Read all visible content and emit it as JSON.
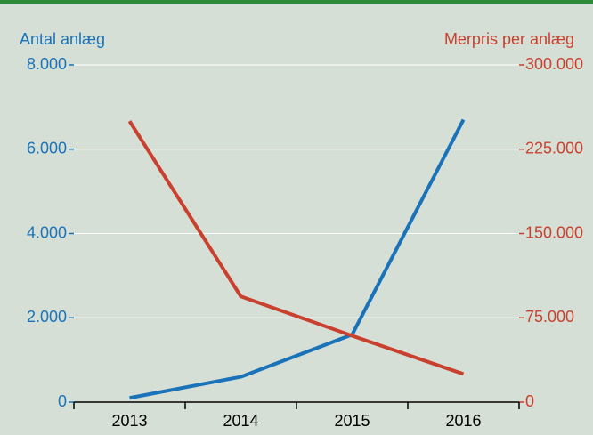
{
  "chart_data": {
    "type": "line",
    "categories": [
      "2013",
      "2014",
      "2015",
      "2016"
    ],
    "y_label": "Antal anlæg",
    "y2_label": "Merpris per anlæg",
    "series": [
      {
        "name": "Antal anlæg",
        "color": "#1a73b9",
        "values": [
          100,
          600,
          1600,
          6700
        ]
      },
      {
        "name": "Merpris per anlæg",
        "color": "#c9412e",
        "axis": "y2",
        "values": [
          250000,
          94000,
          59000,
          25000
        ]
      }
    ],
    "ylim": [
      0,
      8000
    ],
    "yticks": [
      0,
      {
        "value": 2000,
        "label": "2.000"
      },
      {
        "value": 4000,
        "label": "4.000"
      },
      {
        "value": 6000,
        "label": "6.000"
      },
      {
        "value": 8000,
        "label": "8.000"
      }
    ],
    "y2lim": [
      0,
      300000
    ],
    "y2ticks": [
      0,
      {
        "value": 75000,
        "label": "75.000"
      },
      {
        "value": 150000,
        "label": "150.000"
      },
      {
        "value": 225000,
        "label": "225.000"
      },
      {
        "value": 300000,
        "label": "300.000"
      }
    ],
    "grid": true
  }
}
